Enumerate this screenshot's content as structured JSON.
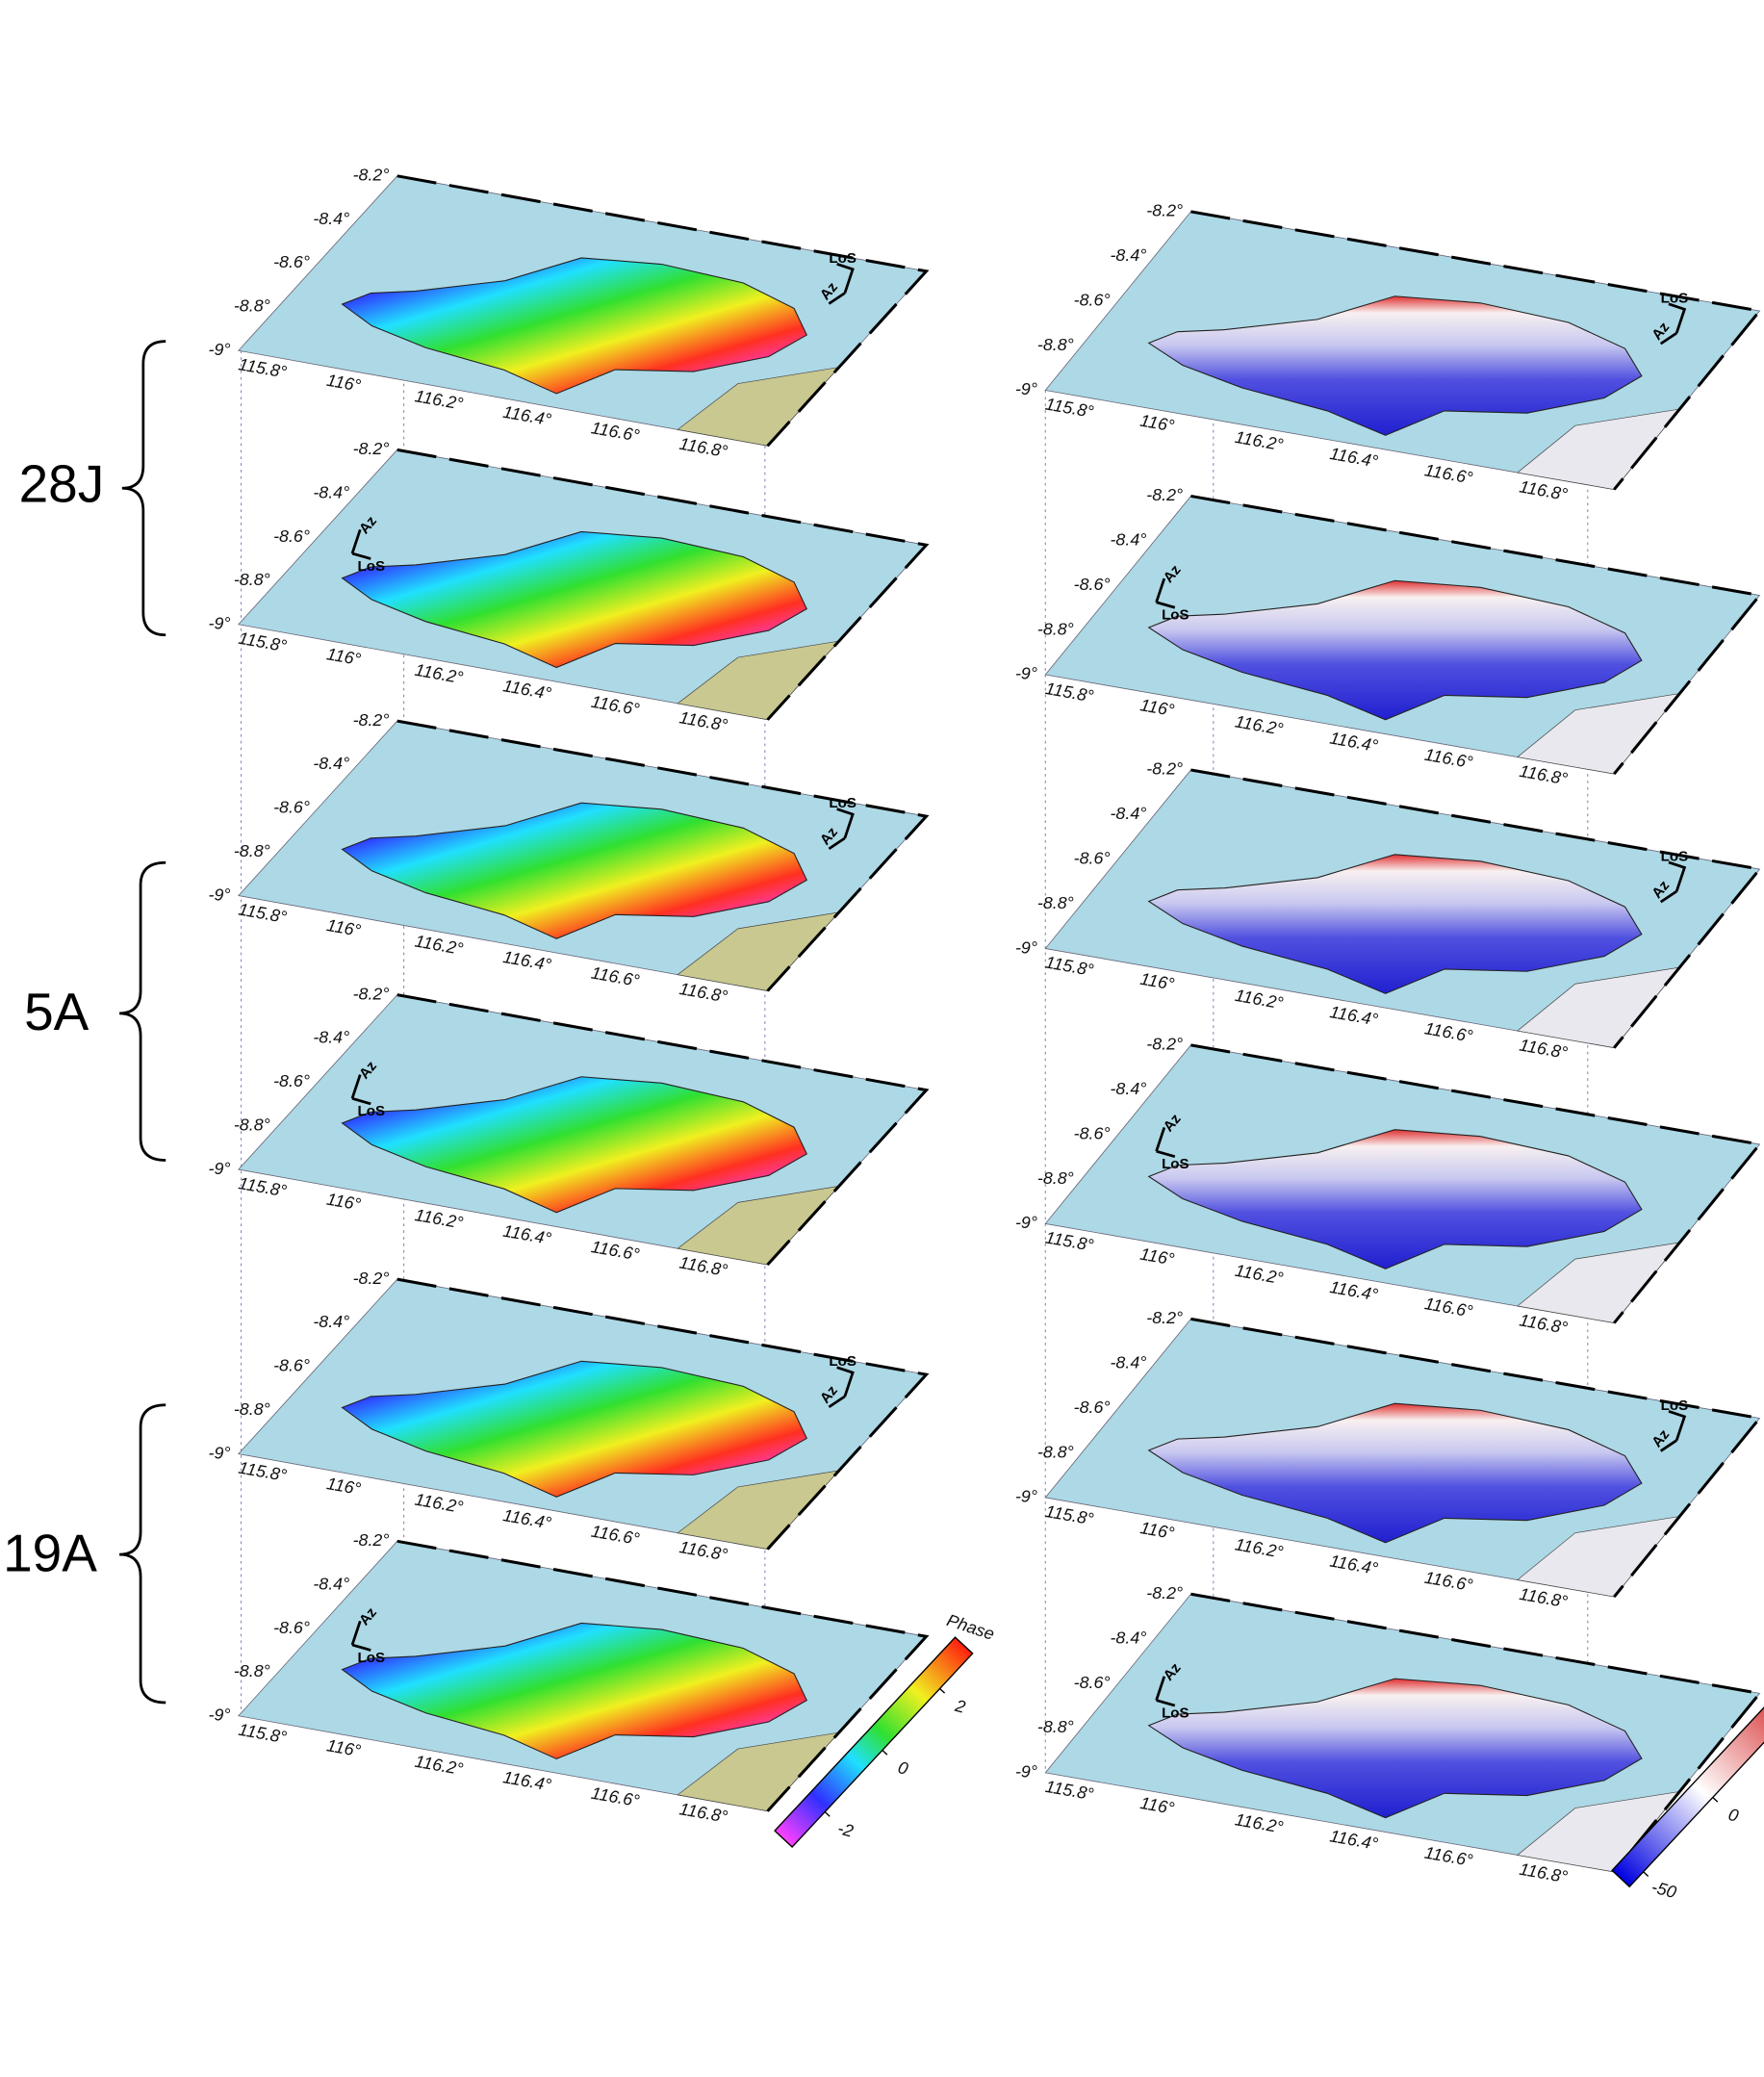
{
  "groups": [
    "28J",
    "5A",
    "19A"
  ],
  "panel_labels": {
    "lat": [
      "-8.2°",
      "-8.4°",
      "-8.6°",
      "-8.8°",
      "-9°"
    ],
    "lon": [
      "115.8°",
      "116°",
      "116.2°",
      "116.4°",
      "116.6°",
      "116.8°"
    ],
    "los": "LoS",
    "az": "Az"
  },
  "phase_colorbar": {
    "title": "Phase",
    "lim": [
      -3.14,
      3.14
    ],
    "ticks": [
      2,
      0,
      -2
    ]
  },
  "displacement_colorbar": {
    "lim": [
      -60,
      70
    ],
    "ticks": [
      0,
      -50
    ]
  }
}
